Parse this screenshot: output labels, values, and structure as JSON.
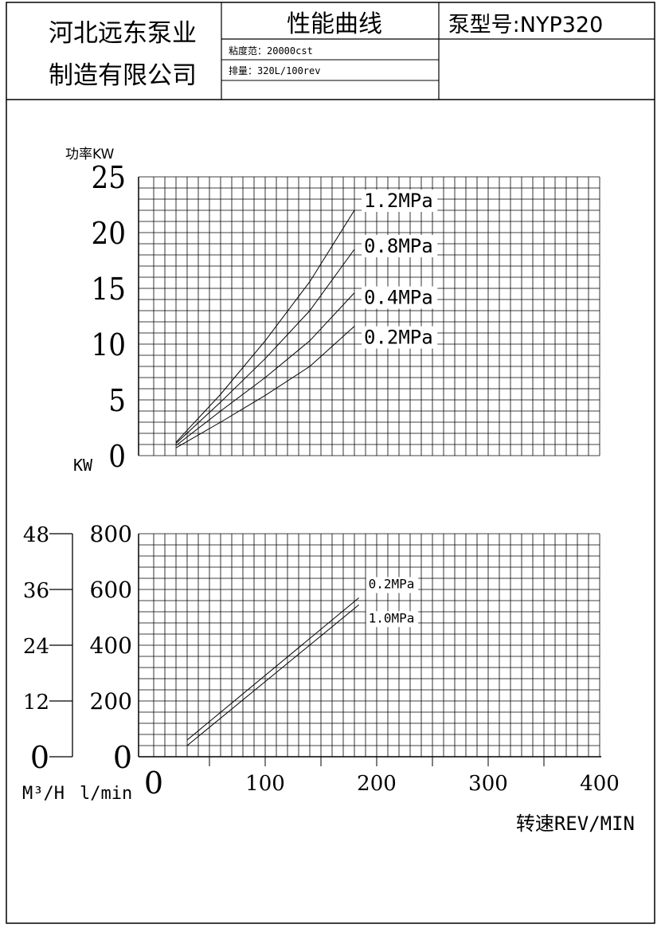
{
  "header": {
    "company_line1": "河北远东泵业",
    "company_line2": "制造有限公司",
    "title": "性能曲线",
    "pump_model": "泵型号:NYP320",
    "viscosity_range": "粘度范：20000cst",
    "displacement": "排量：320L/100rev"
  },
  "chart_data": [
    {
      "type": "line",
      "title": "",
      "ylabel": "功率KW",
      "y_unit_label": "KW",
      "xlim": [
        0,
        400
      ],
      "ylim": [
        0,
        25
      ],
      "y_ticks": [
        "0",
        "5",
        "10",
        "15",
        "20",
        "25"
      ],
      "grid": true,
      "series": [
        {
          "name": "1.2MPa",
          "x": [
            20,
            60,
            100,
            140,
            180
          ],
          "y": [
            1.2,
            5.5,
            10.3,
            15.6,
            22.0
          ]
        },
        {
          "name": "0.8MPa",
          "x": [
            20,
            60,
            100,
            140,
            180
          ],
          "y": [
            1.1,
            4.8,
            8.7,
            13.0,
            18.5
          ]
        },
        {
          "name": "0.4MPa",
          "x": [
            20,
            60,
            100,
            140,
            180
          ],
          "y": [
            0.9,
            4.0,
            7.0,
            10.3,
            14.6
          ]
        },
        {
          "name": "0.2MPa",
          "x": [
            20,
            60,
            100,
            140,
            180
          ],
          "y": [
            0.7,
            3.0,
            5.4,
            8.0,
            11.6
          ]
        }
      ]
    },
    {
      "type": "line",
      "title": "",
      "xlabel": "转速REV/MIN",
      "ylabel_left": "M³/H",
      "ylabel_right": "l/min",
      "xlim": [
        0,
        400
      ],
      "ylim": [
        0,
        800
      ],
      "x_ticks": [
        "0",
        "100",
        "200",
        "300",
        "400"
      ],
      "y_ticks": [
        "0",
        "200",
        "400",
        "600",
        "800"
      ],
      "y2_ticks": [
        "0",
        "12",
        "24",
        "36",
        "48"
      ],
      "y2lim": [
        0,
        48
      ],
      "grid": true,
      "series": [
        {
          "name": "0.2MPa",
          "x": [
            30,
            184
          ],
          "y": [
            60,
            570
          ]
        },
        {
          "name": "1.0MPa",
          "x": [
            30,
            184
          ],
          "y": [
            40,
            545
          ]
        }
      ]
    }
  ]
}
